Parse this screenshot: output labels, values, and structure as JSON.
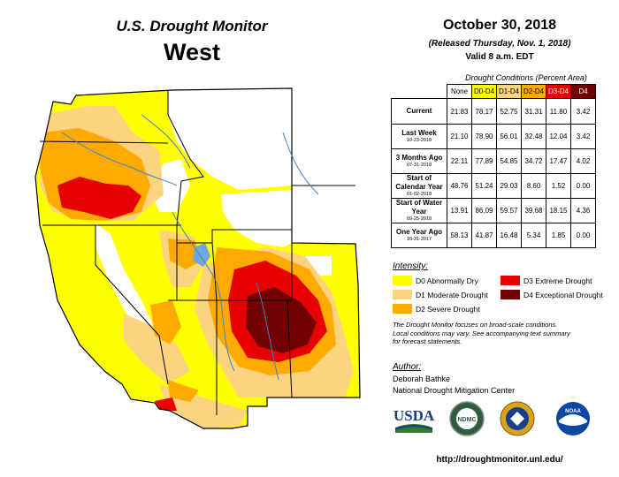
{
  "header": {
    "product": "U.S. Drought Monitor",
    "region": "West",
    "date": "October 30, 2018",
    "released": "(Released Thursday, Nov. 1, 2018)",
    "valid": "Valid 8 a.m. EDT"
  },
  "conditions": {
    "title": "Drought Conditions (Percent Area)",
    "columns": [
      "None",
      "D0-D4",
      "D1-D4",
      "D2-D4",
      "D3-D4",
      "D4"
    ],
    "column_colors": [
      "#ffffff",
      "#ffff00",
      "#fcd37f",
      "#ffaa00",
      "#e60000",
      "#730000"
    ],
    "rows": [
      {
        "label": "Current",
        "sub": "",
        "values": [
          "21.83",
          "78.17",
          "52.75",
          "31.31",
          "11.80",
          "3.42"
        ]
      },
      {
        "label": "Last Week",
        "sub": "10-23-2018",
        "values": [
          "21.10",
          "78.90",
          "56.01",
          "32.48",
          "12.04",
          "3.42"
        ]
      },
      {
        "label": "3 Months Ago",
        "sub": "07-31-2018",
        "values": [
          "22.11",
          "77.89",
          "54.85",
          "34.72",
          "17.47",
          "4.02"
        ]
      },
      {
        "label": "Start of Calendar Year",
        "sub": "01-02-2018",
        "values": [
          "48.76",
          "51.24",
          "29.03",
          "8.60",
          "1.52",
          "0.00"
        ]
      },
      {
        "label": "Start of Water Year",
        "sub": "09-25-2018",
        "values": [
          "13.91",
          "86.09",
          "59.57",
          "39.68",
          "18.15",
          "4.36"
        ]
      },
      {
        "label": "One Year Ago",
        "sub": "10-31-2017",
        "values": [
          "58.13",
          "41.87",
          "16.48",
          "5.34",
          "1.85",
          "0.00"
        ]
      }
    ]
  },
  "legend": {
    "title": "Intensity:",
    "items": [
      {
        "label": "D0 Abnormally Dry",
        "color": "#ffff00"
      },
      {
        "label": "D1 Moderate Drought",
        "color": "#fcd37f"
      },
      {
        "label": "D2 Severe Drought",
        "color": "#ffaa00"
      },
      {
        "label": "D3 Extreme Drought",
        "color": "#e60000"
      },
      {
        "label": "D4 Exceptional Drought",
        "color": "#730000"
      }
    ]
  },
  "note": {
    "line1": "The Drought Monitor focuses on broad-scale conditions.",
    "line2": "Local conditions may vary. See accompanying text summary",
    "line3": "for forecast statements."
  },
  "author": {
    "title": "Author:",
    "name": "Deborah Bathke",
    "org": "National Drought Mitigation Center"
  },
  "logos": {
    "usda": "USDA",
    "ndmc": "NDMC",
    "noaa": "NOAA"
  },
  "url": "http://droughtmonitor.unl.edu/"
}
